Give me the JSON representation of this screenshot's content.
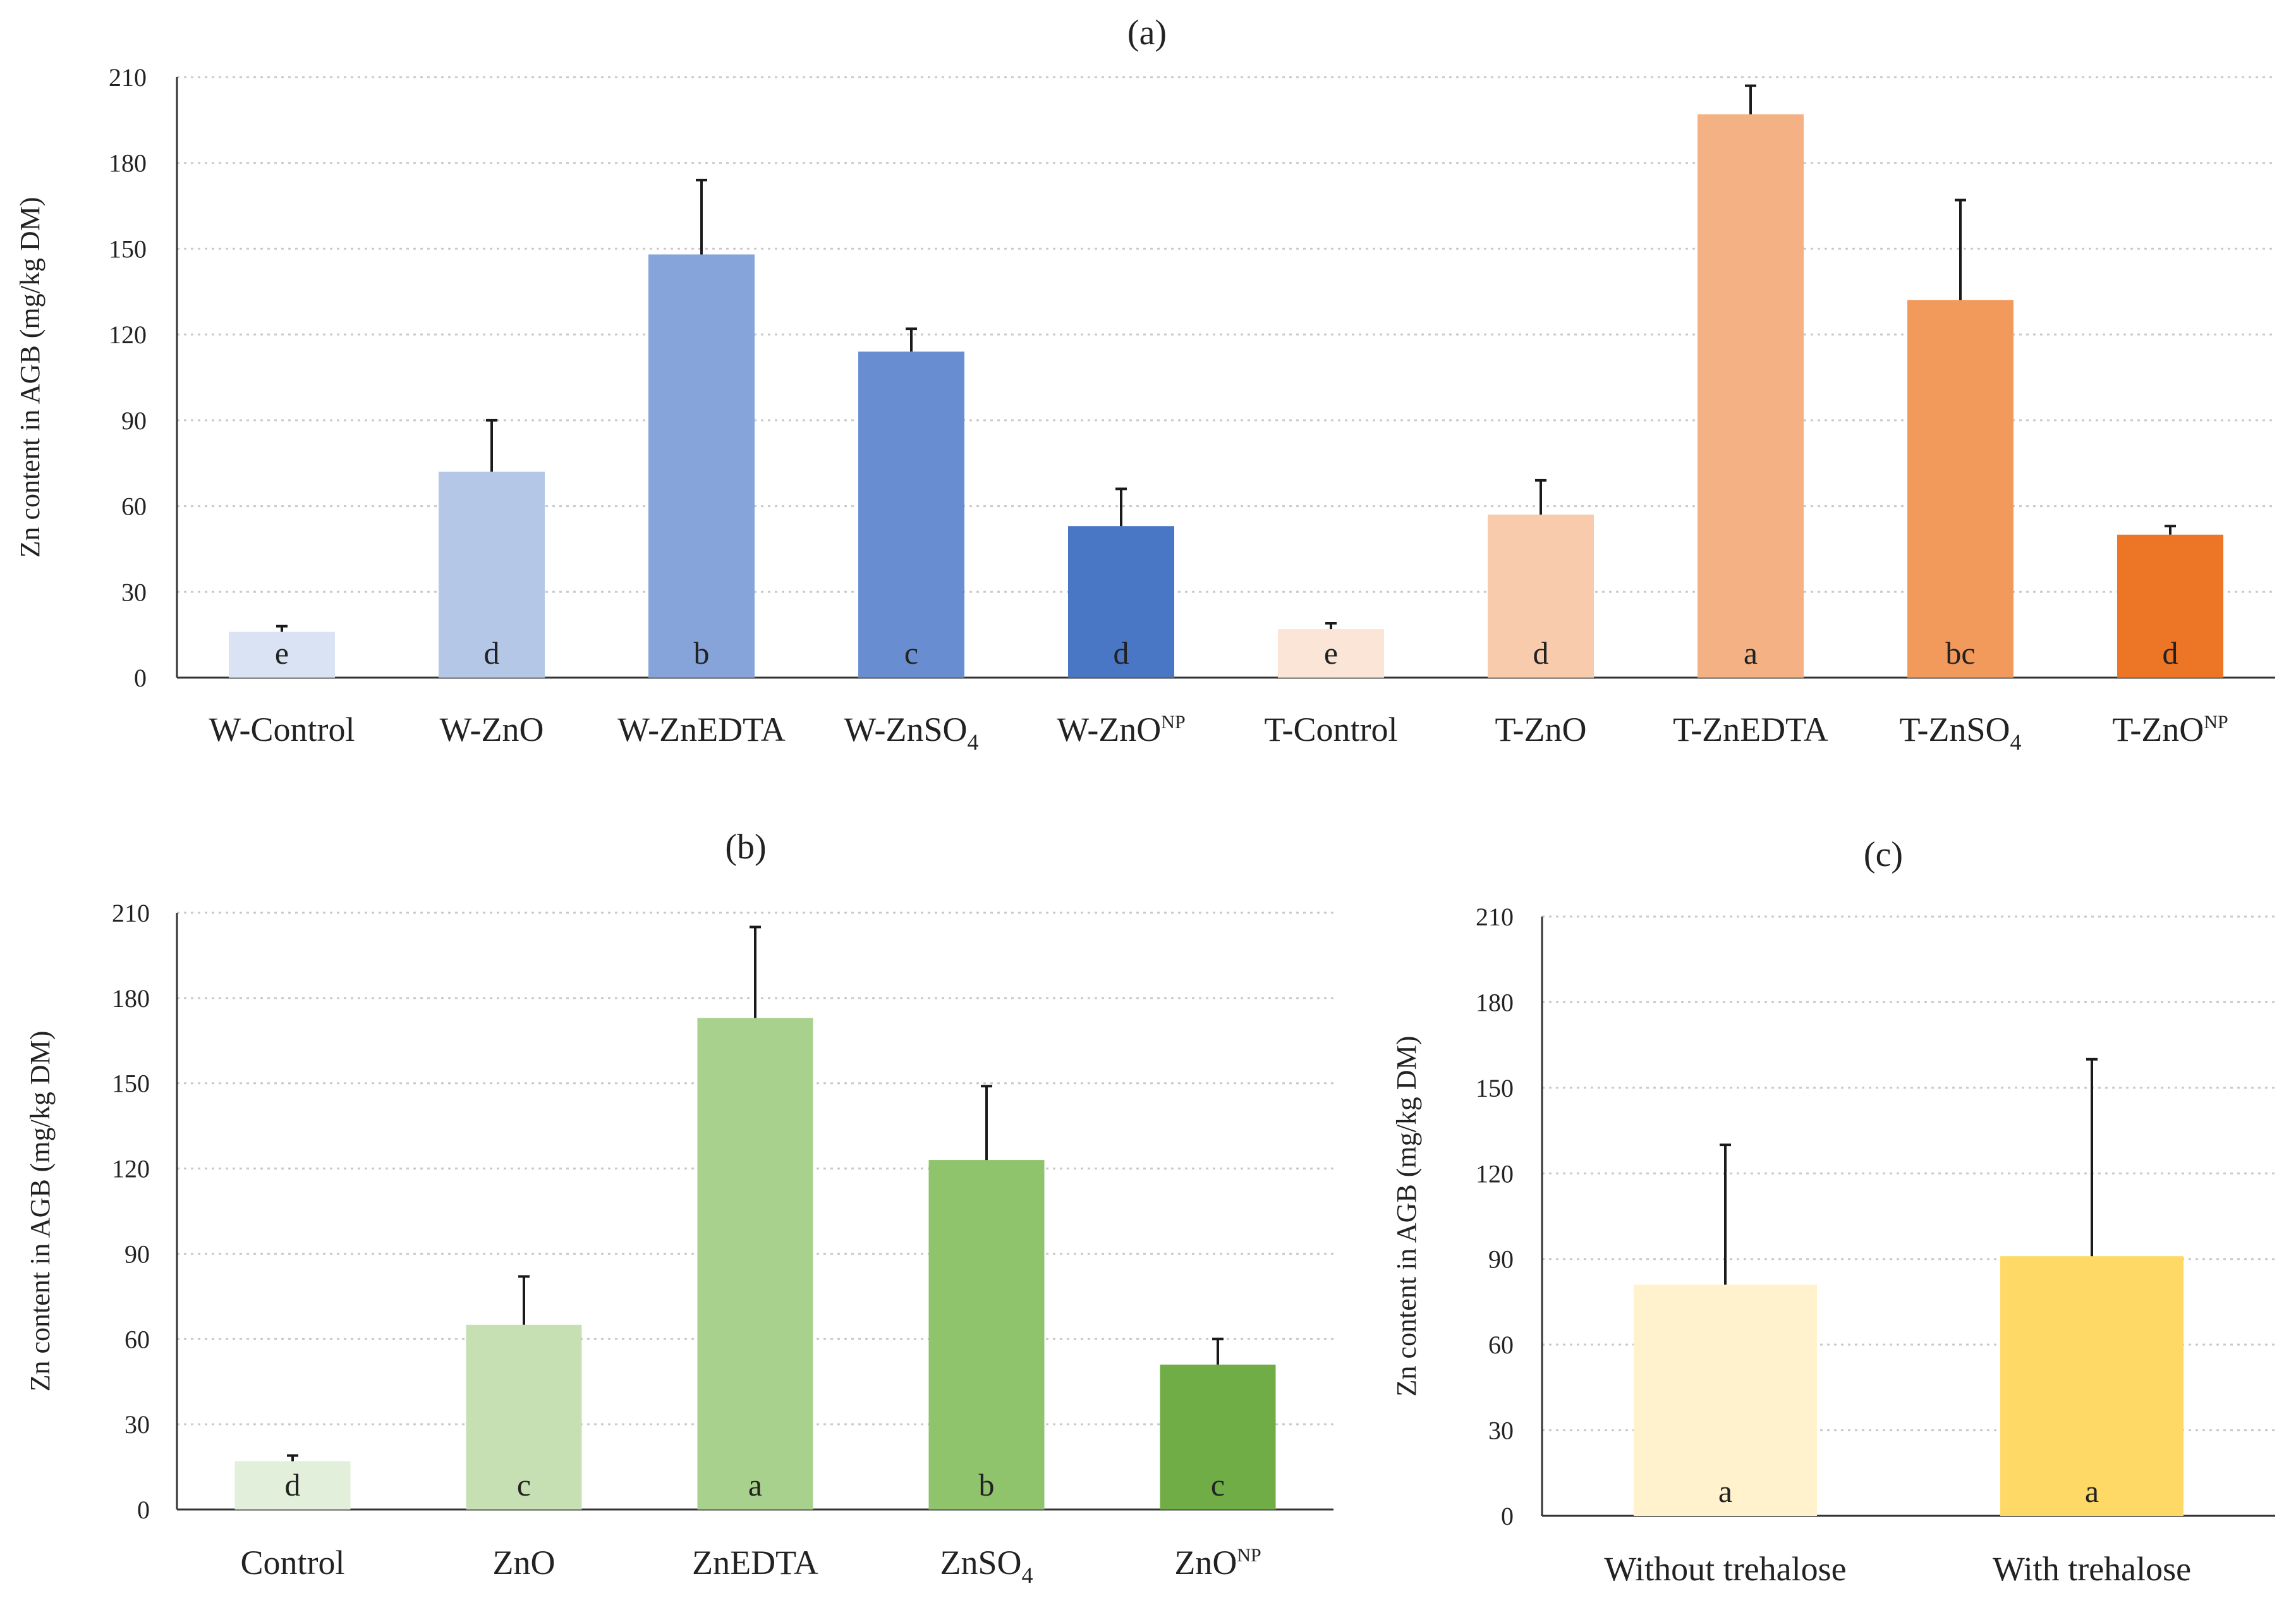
{
  "chart_data": [
    {
      "type": "bar",
      "title": "(a)",
      "xlabel": "",
      "ylabel": "Zn content in AGB (mg/kg DM)",
      "ylim": [
        0,
        210
      ],
      "yticks": [
        0,
        30,
        60,
        90,
        120,
        150,
        180,
        210
      ],
      "grid": true,
      "categories": [
        {
          "label": "W-Control",
          "main": "W-Control",
          "sub": "",
          "sup": ""
        },
        {
          "label": "W-ZnO",
          "main": "W-ZnO",
          "sub": "",
          "sup": ""
        },
        {
          "label": "W-ZnEDTA",
          "main": "W-ZnEDTA",
          "sub": "",
          "sup": ""
        },
        {
          "label": "W-ZnSO4",
          "main": "W-ZnSO",
          "sub": "4",
          "sup": ""
        },
        {
          "label": "W-ZnONP",
          "main": "W-ZnO",
          "sub": "",
          "sup": "NP"
        },
        {
          "label": "T-Control",
          "main": "T-Control",
          "sub": "",
          "sup": ""
        },
        {
          "label": "T-ZnO",
          "main": "T-ZnO",
          "sub": "",
          "sup": ""
        },
        {
          "label": "T-ZnEDTA",
          "main": "T-ZnEDTA",
          "sub": "",
          "sup": ""
        },
        {
          "label": "T-ZnSO4",
          "main": "T-ZnSO",
          "sub": "4",
          "sup": ""
        },
        {
          "label": "T-ZnONP",
          "main": "T-ZnO",
          "sub": "",
          "sup": "NP"
        }
      ],
      "values": [
        16,
        72,
        148,
        114,
        53,
        17,
        57,
        197,
        132,
        50
      ],
      "errors": [
        2,
        18,
        26,
        8,
        13,
        2,
        12,
        10,
        35,
        3
      ],
      "letters": [
        "e",
        "d",
        "b",
        "c",
        "d",
        "e",
        "d",
        "a",
        "bc",
        "d"
      ],
      "colors": [
        "#dae3f3",
        "#b4c7e7",
        "#86a4d9",
        "#688ed1",
        "#4a76c6",
        "#fbe5d6",
        "#f8cbad",
        "#f4b183",
        "#f19a5b",
        "#ec7526"
      ]
    },
    {
      "type": "bar",
      "title": "(b)",
      "xlabel": "",
      "ylabel": "Zn content in AGB (mg/kg DM)",
      "ylim": [
        0,
        210
      ],
      "yticks": [
        0,
        30,
        60,
        90,
        120,
        150,
        180,
        210
      ],
      "grid": true,
      "categories": [
        {
          "label": "Control",
          "main": "Control",
          "sub": "",
          "sup": ""
        },
        {
          "label": "ZnO",
          "main": "ZnO",
          "sub": "",
          "sup": ""
        },
        {
          "label": "ZnEDTA",
          "main": "ZnEDTA",
          "sub": "",
          "sup": ""
        },
        {
          "label": "ZnSO4",
          "main": "ZnSO",
          "sub": "4",
          "sup": ""
        },
        {
          "label": "ZnONP",
          "main": "ZnO",
          "sub": "",
          "sup": "NP"
        }
      ],
      "values": [
        17,
        65,
        173,
        123,
        51
      ],
      "errors": [
        2,
        17,
        32,
        26,
        9
      ],
      "letters": [
        "d",
        "c",
        "a",
        "b",
        "c"
      ],
      "colors": [
        "#e2efda",
        "#c6e0b4",
        "#a9d18e",
        "#8fc36c",
        "#70ad47"
      ]
    },
    {
      "type": "bar",
      "title": "(c)",
      "xlabel": "",
      "ylabel": "Zn content in AGB (mg/kg DM)",
      "ylim": [
        0,
        210
      ],
      "yticks": [
        0,
        30,
        60,
        90,
        120,
        150,
        180,
        210
      ],
      "grid": true,
      "categories": [
        {
          "label": "Without trehalose",
          "main": "Without trehalose",
          "sub": "",
          "sup": ""
        },
        {
          "label": "With trehalose",
          "main": "With trehalose",
          "sub": "",
          "sup": ""
        }
      ],
      "values": [
        81,
        91
      ],
      "errors": [
        49,
        69
      ],
      "letters": [
        "a",
        "a"
      ],
      "colors": [
        "#fff2cc",
        "#ffd966"
      ]
    }
  ]
}
